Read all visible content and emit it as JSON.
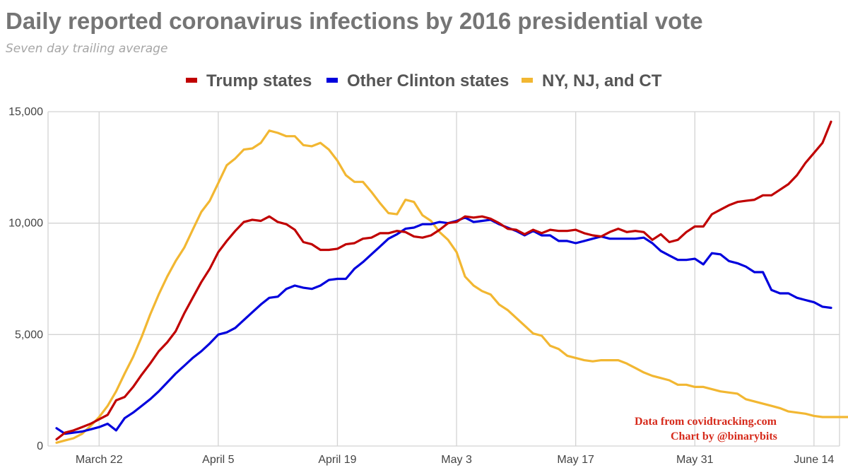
{
  "chart_data": {
    "type": "line",
    "title": "Daily reported coronavirus infections by 2016 presidential vote",
    "subtitle": "Seven day trailing average",
    "xlabel": "",
    "ylabel": "",
    "ylim": [
      0,
      15000
    ],
    "y_ticks": [
      {
        "value": 0,
        "label": "0"
      },
      {
        "value": 5000,
        "label": "5,000"
      },
      {
        "value": 10000,
        "label": "10,000"
      },
      {
        "value": 15000,
        "label": "15,000"
      }
    ],
    "x_ticks": [
      {
        "day": 5,
        "label": "March 22"
      },
      {
        "day": 19,
        "label": "April 5"
      },
      {
        "day": 33,
        "label": "April 19"
      },
      {
        "day": 47,
        "label": "May 3"
      },
      {
        "day": 61,
        "label": "May 17"
      },
      {
        "day": 75,
        "label": "May 31"
      },
      {
        "day": 89,
        "label": "June 14"
      }
    ],
    "x_range_days": [
      -1,
      92
    ],
    "x_unit": "days since March 17",
    "grid": true,
    "legend_position": "top",
    "series": [
      {
        "name": "Trump states",
        "color": "#c00000",
        "values": [
          300,
          600,
          700,
          850,
          1000,
          1200,
          1400,
          2050,
          2200,
          2650,
          3200,
          3700,
          4250,
          4650,
          5150,
          5950,
          6650,
          7350,
          7950,
          8700,
          9200,
          9650,
          10050,
          10150,
          10100,
          10300,
          10050,
          9950,
          9700,
          9150,
          9050,
          8800,
          8800,
          8850,
          9050,
          9100,
          9300,
          9350,
          9550,
          9550,
          9650,
          9600,
          9400,
          9350,
          9450,
          9700,
          10000,
          10050,
          10300,
          10250,
          10300,
          10200,
          10000,
          9750,
          9700,
          9500,
          9700,
          9550,
          9700,
          9650,
          9650,
          9700,
          9550,
          9450,
          9400,
          9600,
          9750,
          9600,
          9650,
          9600,
          9250,
          9500,
          9150,
          9250,
          9600,
          9850,
          9850,
          10400,
          10600,
          10800,
          10950,
          11000,
          11050,
          11250,
          11250,
          11500,
          11750,
          12150,
          12700,
          13150,
          13600,
          14550
        ],
        "end_day": 91
      },
      {
        "name": "Other Clinton states",
        "color": "#0000dd",
        "values": [
          800,
          550,
          600,
          650,
          750,
          850,
          1000,
          700,
          1250,
          1500,
          1800,
          2100,
          2450,
          2850,
          3250,
          3600,
          3950,
          4250,
          4600,
          5000,
          5100,
          5300,
          5650,
          6000,
          6350,
          6650,
          6700,
          7050,
          7200,
          7100,
          7050,
          7200,
          7450,
          7500,
          7500,
          7950,
          8250,
          8600,
          8950,
          9300,
          9500,
          9750,
          9800,
          9950,
          9950,
          10050,
          10000,
          10100,
          10250,
          10050,
          10100,
          10150,
          9950,
          9800,
          9650,
          9450,
          9650,
          9450,
          9450,
          9200,
          9200,
          9100,
          9200,
          9300,
          9400,
          9300,
          9300,
          9300,
          9300,
          9350,
          9100,
          8750,
          8550,
          8350,
          8350,
          8400,
          8150,
          8650,
          8600,
          8300,
          8200,
          8050,
          7800,
          7800,
          7000,
          6850,
          6850,
          6650,
          6550,
          6450,
          6250,
          6200
        ],
        "end_day": 91
      },
      {
        "name": "NY, NJ, and CT",
        "color": "#f2b732",
        "values": [
          150,
          250,
          350,
          550,
          900,
          1300,
          1800,
          2450,
          3250,
          4000,
          4900,
          5900,
          6800,
          7600,
          8300,
          8900,
          9700,
          10500,
          11000,
          11800,
          12600,
          12900,
          13300,
          13350,
          13600,
          14150,
          14050,
          13900,
          13900,
          13500,
          13450,
          13600,
          13300,
          12800,
          12150,
          11850,
          11850,
          11400,
          10900,
          10450,
          10400,
          11050,
          10950,
          10350,
          10100,
          9600,
          9250,
          8700,
          7600,
          7200,
          6950,
          6800,
          6350,
          6100,
          5750,
          5400,
          5050,
          4950,
          4500,
          4350,
          4050,
          3950,
          3850,
          3800,
          3850,
          3850,
          3850,
          3700,
          3500,
          3300,
          3150,
          3050,
          2950,
          2750,
          2750,
          2650,
          2650,
          2550,
          2450,
          2400,
          2350,
          2100,
          2000,
          1900,
          1800,
          1700,
          1550,
          1500,
          1450,
          1350,
          1300,
          1300,
          1300,
          1300
        ],
        "end_day": 93
      }
    ],
    "annotations": [
      "Data from covidtracking.com",
      "Chart by @binarybits"
    ]
  }
}
